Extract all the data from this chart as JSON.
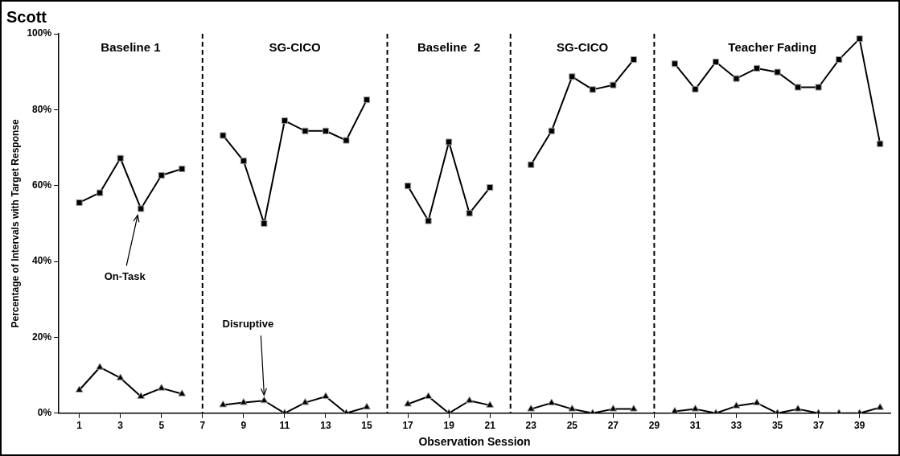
{
  "chart_data": {
    "type": "line",
    "title": "Scott",
    "xlabel": "Observation Session",
    "ylabel": "Percentage of Intervals with Target Response",
    "x": [
      1,
      2,
      3,
      4,
      5,
      6,
      7,
      8,
      9,
      10,
      11,
      12,
      13,
      14,
      15,
      16,
      17,
      18,
      19,
      20,
      21,
      22,
      23,
      24,
      25,
      26,
      27,
      28,
      29,
      30,
      31,
      32,
      33,
      34,
      35,
      36,
      37,
      38,
      39,
      40
    ],
    "series": [
      {
        "name": "On-Task",
        "color": "#000000",
        "marker": "square",
        "values": [
          55.5,
          58.1,
          67.2,
          53.9,
          62.7,
          64.4,
          null,
          73.2,
          66.5,
          50.0,
          77.1,
          74.4,
          74.4,
          71.9,
          82.6,
          null,
          59.9,
          50.7,
          71.5,
          52.7,
          59.5,
          null,
          65.5,
          74.4,
          88.7,
          85.3,
          86.5,
          93.2,
          null,
          92.1,
          85.4,
          92.6,
          88.2,
          90.9,
          89.9,
          85.9,
          85.9,
          93.2,
          98.7,
          71.0
        ]
      },
      {
        "name": "Disruptive",
        "color": "#000000",
        "marker": "triangle",
        "values": [
          6.1,
          12.1,
          9.3,
          4.4,
          6.6,
          5.1,
          null,
          2.2,
          2.8,
          3.3,
          0,
          2.8,
          4.4,
          0,
          1.6,
          null,
          2.4,
          4.4,
          0,
          3.3,
          2.1,
          null,
          1.1,
          2.7,
          1.1,
          0,
          1.1,
          1.1,
          null,
          0.5,
          1.1,
          0,
          1.9,
          2.7,
          0,
          1.1,
          0,
          0,
          0,
          1.5
        ]
      }
    ],
    "xlim": [
      0,
      40.5
    ],
    "xticks": [
      1,
      3,
      5,
      7,
      9,
      11,
      13,
      15,
      17,
      19,
      21,
      23,
      25,
      27,
      29,
      31,
      33,
      35,
      37,
      39
    ],
    "ylim": [
      0,
      100
    ],
    "yticks": [
      {
        "value": 0,
        "label": "0%"
      },
      {
        "value": 20,
        "label": "20%"
      },
      {
        "value": 40,
        "label": "40%"
      },
      {
        "value": 60,
        "label": "60%"
      },
      {
        "value": 80,
        "label": "80%"
      },
      {
        "value": 100,
        "label": "100%"
      }
    ],
    "ref_lines": [
      {
        "axis": "x",
        "value": 7,
        "line_style": "dashed",
        "color": "#000000"
      },
      {
        "axis": "x",
        "value": 16,
        "line_style": "dashed",
        "color": "#000000"
      },
      {
        "axis": "x",
        "value": 22,
        "line_style": "dashed",
        "color": "#000000"
      },
      {
        "axis": "x",
        "value": 29,
        "line_style": "dashed",
        "color": "#000000"
      }
    ],
    "annotations": [
      "Baseline 1",
      "SG-CICO",
      "Baseline  2",
      "SG-CICO",
      "Teacher Fading"
    ],
    "grid": false,
    "legend": false,
    "line_style": "solid"
  }
}
